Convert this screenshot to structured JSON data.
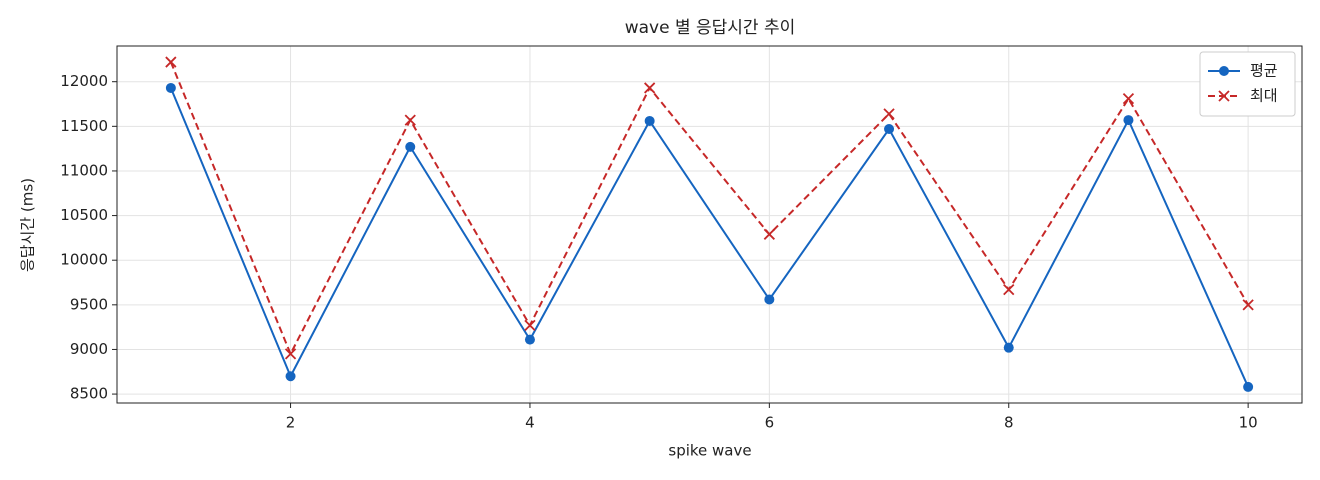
{
  "chart_data": {
    "type": "line",
    "title": "wave 별 응답시간 추이",
    "x_label": "spike wave",
    "y_label": "응답시간 (ms)",
    "x": [
      1,
      2,
      3,
      4,
      5,
      6,
      7,
      8,
      9,
      10
    ],
    "series": [
      {
        "name": "평균",
        "color": "#1565c0",
        "linestyle": "solid",
        "marker": "circle",
        "values": [
          11930,
          8700,
          11270,
          9110,
          11560,
          9560,
          11470,
          9020,
          11570,
          8580
        ]
      },
      {
        "name": "최대",
        "color": "#c62828",
        "linestyle": "dashed",
        "marker": "x",
        "values": [
          12220,
          8950,
          11570,
          9270,
          11930,
          10290,
          11640,
          9670,
          11810,
          9500
        ]
      }
    ],
    "xlim": [
      0.55,
      10.45
    ],
    "xticks": [
      2,
      4,
      6,
      8,
      10
    ],
    "ylim": [
      8400,
      12400
    ],
    "yticks": [
      8500,
      9000,
      9500,
      10000,
      10500,
      11000,
      11500,
      12000
    ],
    "grid": true,
    "legend": "upper right"
  }
}
